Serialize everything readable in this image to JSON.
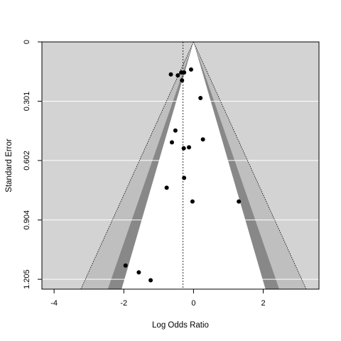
{
  "chart_data": {
    "type": "scatter",
    "subtype": "contour-enhanced funnel plot",
    "title": "",
    "xlabel": "Log Odds Ratio",
    "ylabel": "Standard Error",
    "xlim": [
      -4.35,
      3.6
    ],
    "ylim": [
      1.255,
      0
    ],
    "y_reversed": true,
    "x_ticks": [
      -4,
      -2,
      0,
      2
    ],
    "x_tick_labels": [
      "-4",
      "-2",
      "0",
      "2"
    ],
    "y_ticks": [
      0,
      0.301,
      0.602,
      0.904,
      1.205
    ],
    "y_tick_labels": [
      "0",
      "0.301",
      "0.602",
      "0.904",
      "1.205"
    ],
    "grid": "horizontal",
    "summary_estimate": -0.3,
    "contour_z": [
      1.645,
      1.96,
      2.576
    ],
    "colors": {
      "plot_background": "#d3d3d3",
      "contour_0_90": "#ffffff",
      "contour_90_95": "#888888",
      "contour_95_99": "#bfbfbf",
      "grid": "#ffffff",
      "points": "#000000",
      "lines": "#000000"
    },
    "points": [
      {
        "x": -0.65,
        "y": 0.165
      },
      {
        "x": -0.45,
        "y": 0.17
      },
      {
        "x": -0.35,
        "y": 0.155
      },
      {
        "x": -0.27,
        "y": 0.155
      },
      {
        "x": -0.07,
        "y": 0.14
      },
      {
        "x": -0.33,
        "y": 0.195
      },
      {
        "x": 0.2,
        "y": 0.285
      },
      {
        "x": -0.52,
        "y": 0.45
      },
      {
        "x": -0.62,
        "y": 0.51
      },
      {
        "x": 0.27,
        "y": 0.495
      },
      {
        "x": -0.28,
        "y": 0.54
      },
      {
        "x": -0.13,
        "y": 0.535
      },
      {
        "x": -0.27,
        "y": 0.69
      },
      {
        "x": -0.77,
        "y": 0.74
      },
      {
        "x": -0.03,
        "y": 0.81
      },
      {
        "x": 1.3,
        "y": 0.81
      },
      {
        "x": -1.95,
        "y": 1.135
      },
      {
        "x": -1.57,
        "y": 1.17
      },
      {
        "x": -1.23,
        "y": 1.21
      }
    ]
  }
}
